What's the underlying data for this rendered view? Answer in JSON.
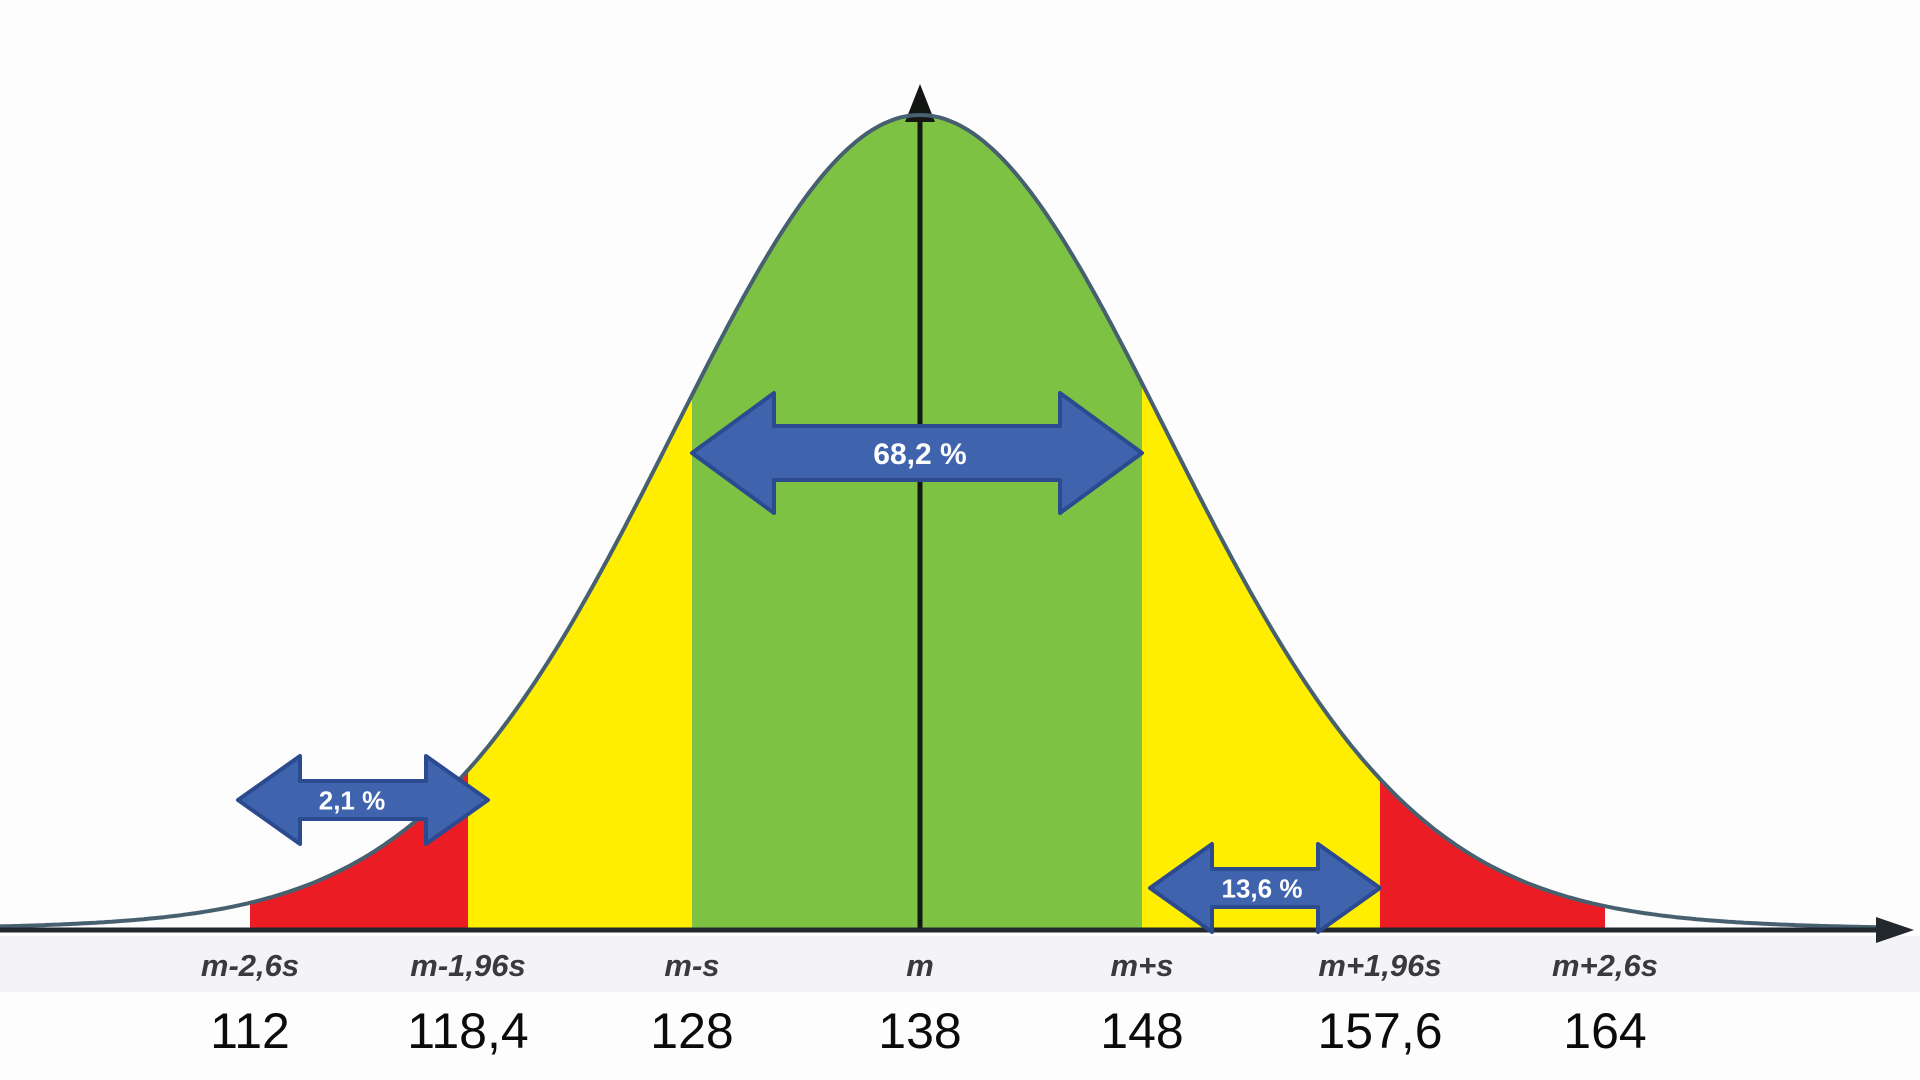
{
  "chart_data": {
    "type": "area",
    "subtype": "normal-distribution-density",
    "title": "",
    "mean_symbol": "m",
    "sd_symbol": "s",
    "x_ticks": [
      {
        "sigma_label": "m-2,6s",
        "value_label": "112"
      },
      {
        "sigma_label": "m-1,96s",
        "value_label": "118,4"
      },
      {
        "sigma_label": "m-s",
        "value_label": "128"
      },
      {
        "sigma_label": "m",
        "value_label": "138"
      },
      {
        "sigma_label": "m+s",
        "value_label": "148"
      },
      {
        "sigma_label": "m+1,96s",
        "value_label": "157,6"
      },
      {
        "sigma_label": "m+2,6s",
        "value_label": "164"
      }
    ],
    "regions": [
      {
        "name": "region-red-left",
        "from_tick": 0,
        "to_tick": 1,
        "color": "#ec1c24"
      },
      {
        "name": "region-yellow-left",
        "from_tick": 1,
        "to_tick": 2,
        "color": "#ffee00"
      },
      {
        "name": "region-green-center",
        "from_tick": 2,
        "to_tick": 4,
        "color": "#7dc242"
      },
      {
        "name": "region-yellow-right",
        "from_tick": 4,
        "to_tick": 5,
        "color": "#ffee00"
      },
      {
        "name": "region-red-right",
        "from_tick": 5,
        "to_tick": 6,
        "color": "#ec1c24"
      }
    ],
    "annotations": [
      {
        "name": "arrow-68-2-percent",
        "label": "68,2 %",
        "from": "m-s",
        "to": "m+s"
      },
      {
        "name": "arrow-2-1-percent",
        "label": "2,1 %",
        "from": "left-tail",
        "to": "m-1,96s"
      },
      {
        "name": "arrow-13-6-percent",
        "label": "13,6 %",
        "from": "m+s",
        "to": "m+1,96s"
      }
    ],
    "legend": "none",
    "grid": "off",
    "colors": {
      "green": "#7dc242",
      "yellow": "#ffee00",
      "red": "#ec1c24",
      "arrow_fill": "#4063ae",
      "arrow_stroke": "#2b4a8f",
      "arrow_text": "#ffffff",
      "curve_stroke": "#47606f",
      "axis": "#22282d",
      "center_line": "#131613",
      "sigma_label_color": "#3a3a3e",
      "value_label_color": "#0b0b0b",
      "label_band": "#f4f4f6"
    }
  }
}
